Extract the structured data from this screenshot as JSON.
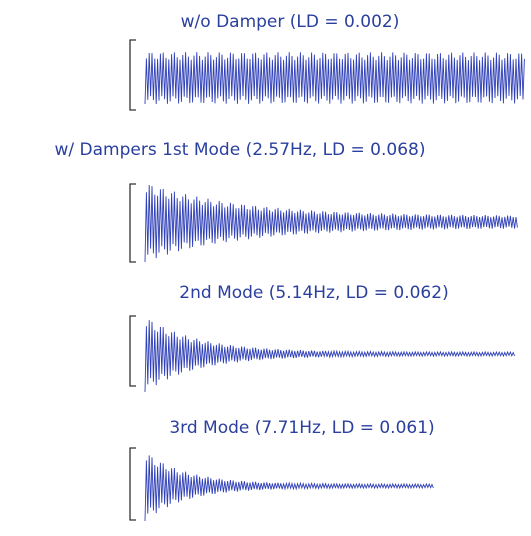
{
  "captions": [
    "w/o Damper (LD = 0.002)",
    "w/ Dampers 1st Mode (2.57Hz, LD = 0.068)",
    "2nd Mode (5.14Hz, LD = 0.062)",
    "3rd Mode (7.71Hz, LD = 0.061)"
  ]
}
